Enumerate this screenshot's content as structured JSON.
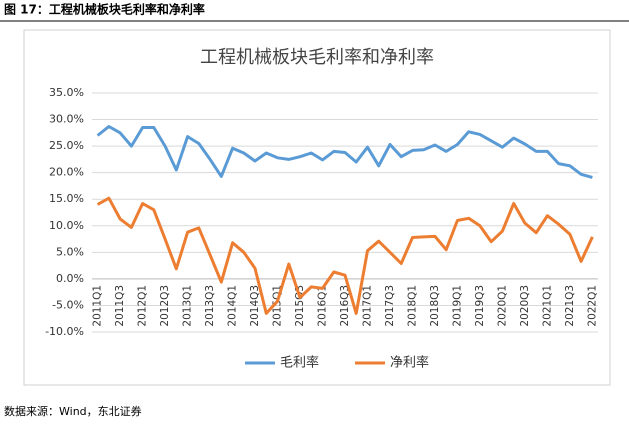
{
  "caption": "图 17：工程机械板块毛利率和净利率",
  "source": "数据来源：Wind，东北证券",
  "chart_data": {
    "type": "line",
    "title": "工程机械板块毛利率和净利率",
    "categories": [
      "2011Q1",
      null,
      "2011Q3",
      null,
      "2012Q1",
      null,
      "2012Q3",
      null,
      "2013Q1",
      null,
      "2013Q3",
      null,
      "2014Q1",
      null,
      "2014Q3",
      null,
      "2015Q1",
      null,
      "2015Q3",
      null,
      "2016Q1",
      null,
      "2016Q3",
      null,
      "2017Q1",
      null,
      "2017Q3",
      null,
      "2018Q1",
      null,
      "2018Q3",
      null,
      "2019Q1",
      null,
      "2019Q3",
      null,
      "2020Q1",
      null,
      "2020Q3",
      null,
      "2021Q1",
      null,
      "2021Q3",
      null,
      "2022Q1"
    ],
    "series": [
      {
        "name": "毛利率",
        "color": "#5b9bd5",
        "values": [
          27.0,
          28.7,
          27.5,
          25.0,
          28.5,
          28.5,
          25.0,
          20.5,
          26.8,
          25.5,
          22.5,
          19.3,
          24.6,
          23.7,
          22.2,
          23.7,
          22.8,
          22.5,
          23.0,
          23.7,
          22.4,
          24.0,
          23.8,
          22.0,
          24.8,
          21.3,
          25.3,
          23.0,
          24.2,
          24.3,
          25.2,
          24.0,
          25.3,
          27.7,
          27.2,
          26.0,
          24.8,
          26.5,
          25.4,
          24.0,
          24.0,
          21.7,
          21.3,
          19.7,
          19.1
        ]
      },
      {
        "name": "净利率",
        "color": "#ed7d31",
        "values": [
          14.0,
          15.2,
          11.3,
          9.7,
          14.2,
          13.0,
          7.5,
          1.9,
          8.8,
          9.6,
          4.5,
          -0.6,
          6.8,
          5.0,
          2.0,
          -6.5,
          -4.2,
          2.8,
          -3.5,
          -1.5,
          -1.8,
          1.3,
          0.7,
          -6.5,
          5.3,
          7.1,
          5.0,
          2.9,
          7.8,
          7.9,
          8.0,
          5.5,
          11.0,
          11.4,
          10.0,
          7.0,
          9.0,
          14.2,
          10.5,
          8.7,
          11.9,
          10.3,
          8.4,
          3.3,
          7.9
        ]
      }
    ],
    "ylim": [
      -10,
      35
    ],
    "yticks": [
      {
        "value": -10,
        "label": "-10.0%"
      },
      {
        "value": -5,
        "label": "-5.0%"
      },
      {
        "value": 0,
        "label": "0.0%"
      },
      {
        "value": 5,
        "label": "5.0%"
      },
      {
        "value": 10,
        "label": "10.0%"
      },
      {
        "value": 15,
        "label": "15.0%"
      },
      {
        "value": 20,
        "label": "20.0%"
      },
      {
        "value": 25,
        "label": "25.0%"
      },
      {
        "value": 30,
        "label": "30.0%"
      },
      {
        "value": 35,
        "label": "35.0%"
      }
    ],
    "grid": true,
    "legend": "bottom"
  }
}
